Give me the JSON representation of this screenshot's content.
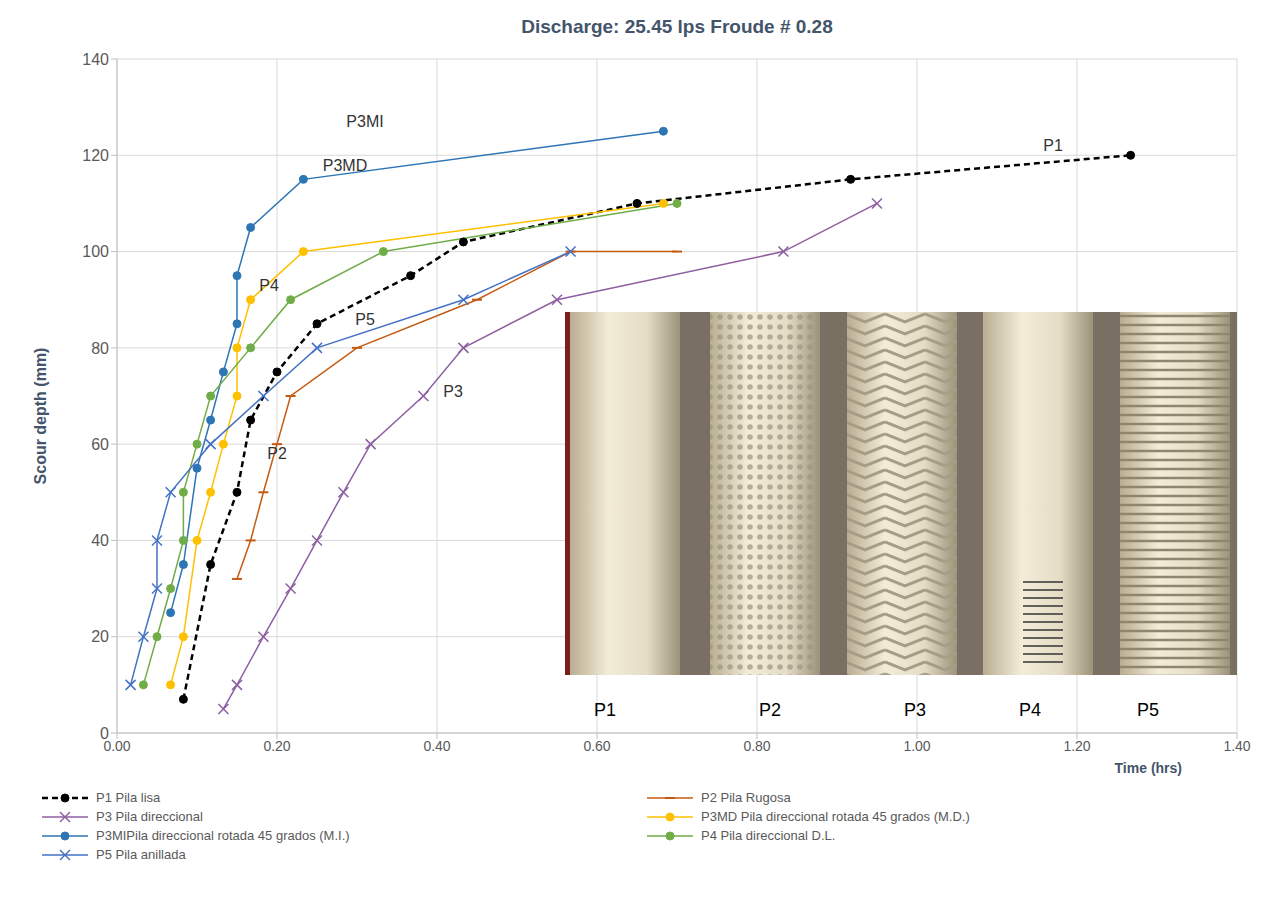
{
  "chart_data": {
    "type": "line",
    "title": "Discharge: 25.45 lps  Froude # 0.28",
    "x_label": "Time (hrs)",
    "y_label": "Scour depth (mm)",
    "xlim": [
      0,
      1.4
    ],
    "xticks": [
      {
        "value": 0,
        "label": "0.00"
      },
      {
        "value": 0.2,
        "label": "0.20"
      },
      {
        "value": 0.4,
        "label": "0.40"
      },
      {
        "value": 0.6,
        "label": "0.60"
      },
      {
        "value": 0.8,
        "label": "0.80"
      },
      {
        "value": 1.0,
        "label": "1.00"
      },
      {
        "value": 1.2,
        "label": "1.20"
      },
      {
        "value": 1.4,
        "label": "1.40"
      }
    ],
    "ylim": [
      0,
      140
    ],
    "yticks": [
      0,
      20,
      40,
      60,
      80,
      100,
      120,
      140
    ],
    "grid": true,
    "legend": "bottom",
    "series": [
      {
        "name": "P1 Pila lisa",
        "color": "#000000",
        "line_style": "dashed",
        "marker": "circle",
        "x": [
          0.083,
          0.117,
          0.15,
          0.167,
          0.2,
          0.25,
          0.367,
          0.433,
          0.65,
          0.917,
          1.267
        ],
        "values": [
          7,
          35,
          50,
          65,
          75,
          85,
          95,
          102,
          110,
          115,
          120
        ]
      },
      {
        "name": "P2 Pila Rugosa",
        "color": "#c55a11",
        "line_style": "solid",
        "marker": "dash",
        "x": [
          0.15,
          0.167,
          0.183,
          0.2,
          0.217,
          0.3,
          0.45,
          0.567,
          0.7
        ],
        "values": [
          32,
          40,
          50,
          60,
          70,
          80,
          90,
          100,
          100
        ]
      },
      {
        "name": "P3 Pila direccional",
        "color": "#8e5ea2",
        "line_style": "solid",
        "marker": "x",
        "x": [
          0.133,
          0.15,
          0.183,
          0.217,
          0.25,
          0.283,
          0.317,
          0.383,
          0.433,
          0.55,
          0.833,
          0.95
        ],
        "values": [
          5,
          10,
          20,
          30,
          40,
          50,
          60,
          70,
          80,
          90,
          100,
          110
        ]
      },
      {
        "name": "P3MD Pila direccional rotada 45 grados (M.D.)",
        "color": "#ffc000",
        "line_style": "solid",
        "marker": "circle",
        "x": [
          0.067,
          0.083,
          0.1,
          0.117,
          0.133,
          0.15,
          0.15,
          0.167,
          0.233,
          0.683
        ],
        "values": [
          10,
          20,
          40,
          50,
          60,
          70,
          80,
          90,
          100,
          110
        ]
      },
      {
        "name": "P3MIPila direccional rotada 45 grados (M.I.)",
        "color": "#2e75b6",
        "line_style": "solid",
        "marker": "circle",
        "x": [
          0.067,
          0.083,
          0.1,
          0.117,
          0.133,
          0.15,
          0.15,
          0.167,
          0.233,
          0.683
        ],
        "values": [
          25,
          35,
          55,
          65,
          75,
          85,
          95,
          105,
          115,
          125
        ]
      },
      {
        "name": "P4 Pila direccional D.L.",
        "color": "#70ad47",
        "line_style": "solid",
        "marker": "circle",
        "x": [
          0.033,
          0.05,
          0.067,
          0.083,
          0.083,
          0.1,
          0.117,
          0.167,
          0.217,
          0.333,
          0.7
        ],
        "values": [
          10,
          20,
          30,
          40,
          50,
          60,
          70,
          80,
          90,
          100,
          110
        ]
      },
      {
        "name": "P5 Pila anillada",
        "color": "#4472c4",
        "line_style": "solid",
        "marker": "x",
        "x": [
          0.017,
          0.033,
          0.05,
          0.05,
          0.067,
          0.117,
          0.183,
          0.25,
          0.433,
          0.567
        ],
        "values": [
          10,
          20,
          30,
          40,
          50,
          60,
          70,
          80,
          90,
          100
        ]
      }
    ],
    "annotations": [
      {
        "text": "P3MI",
        "x": 0.31,
        "y": 127
      },
      {
        "text": "P3MD",
        "x": 0.285,
        "y": 118
      },
      {
        "text": "P4",
        "x": 0.19,
        "y": 93
      },
      {
        "text": "P5",
        "x": 0.31,
        "y": 86
      },
      {
        "text": "P1",
        "x": 1.17,
        "y": 122
      },
      {
        "text": "P2",
        "x": 0.2,
        "y": 58
      },
      {
        "text": "P3",
        "x": 0.42,
        "y": 71
      }
    ],
    "inset_labels": [
      "P1",
      "P2",
      "P3",
      "P4",
      "P5"
    ]
  }
}
